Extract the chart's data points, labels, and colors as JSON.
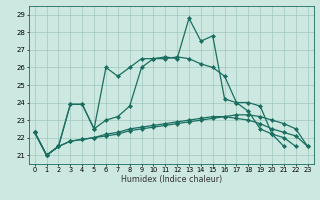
{
  "xlabel": "Humidex (Indice chaleur)",
  "ylabel": "",
  "bg_color": "#cce8e0",
  "grid_color": "#a0c8be",
  "line_color": "#1a6e60",
  "xlim": [
    -0.5,
    23.5
  ],
  "ylim": [
    20.5,
    29.5
  ],
  "xticks": [
    0,
    1,
    2,
    3,
    4,
    5,
    6,
    7,
    8,
    9,
    10,
    11,
    12,
    13,
    14,
    15,
    16,
    17,
    18,
    19,
    20,
    21,
    22,
    23
  ],
  "yticks": [
    21,
    22,
    23,
    24,
    25,
    26,
    27,
    28,
    29
  ],
  "lines": [
    [
      22.3,
      21.0,
      21.5,
      23.9,
      23.9,
      22.5,
      26.0,
      25.5,
      26.0,
      26.5,
      26.5,
      26.6,
      26.5,
      28.8,
      27.5,
      27.8,
      24.2,
      24.0,
      24.0,
      23.8,
      22.2,
      21.5,
      null,
      null
    ],
    [
      22.3,
      21.0,
      21.5,
      23.9,
      23.9,
      22.5,
      23.0,
      23.2,
      23.8,
      26.0,
      26.5,
      26.5,
      26.6,
      26.5,
      26.2,
      26.0,
      25.5,
      24.0,
      23.5,
      22.5,
      22.2,
      22.0,
      21.5,
      null
    ],
    [
      22.3,
      21.0,
      21.5,
      21.8,
      21.9,
      22.0,
      22.2,
      22.3,
      22.5,
      22.6,
      22.7,
      22.8,
      22.9,
      23.0,
      23.1,
      23.2,
      23.2,
      23.1,
      23.0,
      22.8,
      22.5,
      22.3,
      22.1,
      21.5
    ],
    [
      22.3,
      21.0,
      21.5,
      21.8,
      21.9,
      22.0,
      22.1,
      22.2,
      22.4,
      22.5,
      22.6,
      22.7,
      22.8,
      22.9,
      23.0,
      23.1,
      23.2,
      23.3,
      23.3,
      23.2,
      23.0,
      22.8,
      22.5,
      21.5
    ]
  ],
  "marker": "D",
  "markersize": 2.2,
  "linewidth": 0.9
}
